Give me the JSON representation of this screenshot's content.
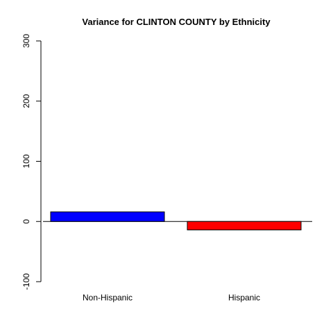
{
  "chart_data": {
    "type": "bar",
    "title": "Variance for CLINTON COUNTY by Ethnicity",
    "xlabel": "",
    "ylabel": "",
    "categories": [
      "Non-Hispanic",
      "Hispanic"
    ],
    "values": [
      16,
      -14
    ],
    "ylim": [
      -100,
      300
    ],
    "yticks": [
      -100,
      0,
      100,
      200,
      300
    ],
    "colors": [
      "#0000ff",
      "#ff0000"
    ],
    "grid": false,
    "legend": "none"
  }
}
